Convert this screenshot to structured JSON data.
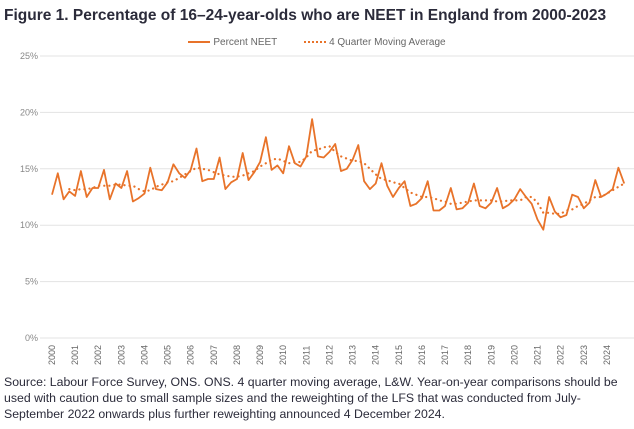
{
  "chart_data": {
    "type": "line",
    "title": "Figure 1. Percentage of 16–24-year-olds who are NEET in England from 2000-2023",
    "xlabel": "",
    "ylabel": "",
    "ylim": [
      0,
      25
    ],
    "yticks": [
      "0%",
      "5%",
      "10%",
      "15%",
      "20%",
      "25%"
    ],
    "ytick_values": [
      0,
      5,
      10,
      15,
      20,
      25
    ],
    "xtick_labels": [
      "2000",
      "2001",
      "2002",
      "2003",
      "2004",
      "2005",
      "2006",
      "2007",
      "2008",
      "2009",
      "2010",
      "2011",
      "2012",
      "2013",
      "2014",
      "2015",
      "2016",
      "2017",
      "2018",
      "2019",
      "2020",
      "2021",
      "2022",
      "2023",
      "2024"
    ],
    "x_frequency": "quarterly",
    "grid": true,
    "legend_position": "top-center",
    "color": "#e8732a",
    "series": [
      {
        "name": "Percent NEET",
        "style": "solid",
        "values": [
          12.7,
          14.6,
          12.3,
          13.0,
          12.6,
          14.8,
          12.5,
          13.3,
          13.3,
          14.9,
          12.3,
          13.7,
          13.3,
          14.8,
          12.1,
          12.4,
          12.8,
          15.1,
          13.2,
          13.1,
          13.8,
          15.4,
          14.6,
          14.2,
          14.9,
          16.8,
          13.9,
          14.1,
          14.1,
          16.0,
          13.2,
          13.8,
          14.1,
          16.4,
          14.0,
          14.7,
          15.6,
          17.8,
          14.9,
          15.3,
          14.6,
          17.0,
          15.5,
          15.2,
          16.1,
          19.4,
          16.1,
          16.0,
          16.5,
          17.2,
          14.8,
          15.0,
          15.8,
          17.1,
          13.9,
          13.2,
          13.7,
          15.5,
          13.5,
          12.5,
          13.3,
          13.9,
          11.7,
          11.9,
          12.4,
          13.9,
          11.3,
          11.3,
          11.7,
          13.3,
          11.4,
          11.5,
          12.0,
          13.7,
          11.7,
          11.5,
          12.0,
          13.3,
          11.5,
          11.8,
          12.3,
          13.2,
          12.5,
          11.9,
          10.5,
          9.6,
          12.5,
          11.2,
          10.7,
          10.9,
          12.7,
          12.5,
          11.5,
          12.0,
          14.0,
          12.5,
          12.8,
          13.2,
          15.1,
          13.7
        ]
      },
      {
        "name": "4 Quarter Moving Average",
        "style": "dotted",
        "values": [
          null,
          null,
          null,
          13.2,
          13.1,
          13.2,
          13.2,
          13.3,
          13.5,
          13.5,
          13.5,
          13.6,
          13.6,
          13.5,
          13.5,
          13.2,
          13.0,
          13.1,
          13.4,
          13.6,
          13.8,
          13.9,
          14.2,
          14.5,
          14.8,
          15.1,
          15.0,
          14.9,
          14.7,
          14.5,
          14.4,
          14.3,
          14.3,
          14.4,
          14.6,
          14.8,
          15.2,
          15.5,
          15.8,
          15.9,
          15.7,
          15.5,
          15.6,
          15.6,
          16.0,
          16.6,
          16.7,
          16.9,
          17.0,
          16.5,
          16.1,
          15.9,
          15.7,
          15.7,
          15.5,
          15.0,
          14.5,
          14.1,
          14.0,
          13.8,
          13.7,
          13.3,
          12.9,
          12.7,
          12.5,
          12.5,
          12.4,
          12.2,
          12.1,
          11.9,
          11.9,
          12.0,
          12.1,
          12.2,
          12.2,
          12.2,
          12.2,
          12.1,
          12.1,
          12.2,
          12.2,
          12.2,
          12.5,
          12.5,
          12.0,
          11.1,
          11.1,
          11.0,
          11.0,
          11.3,
          11.4,
          11.7,
          11.9,
          12.2,
          12.5,
          12.5,
          12.8,
          13.1,
          13.4,
          13.7
        ]
      }
    ]
  },
  "source_text": "Source: Labour Force Survey, ONS. ONS. 4 quarter moving average, L&W. Year-on-year comparisons should be used with caution due to small sample sizes and the reweighting of the LFS that was conducted from July-September 2022 onwards plus further reweighting announced 4 December 2024."
}
